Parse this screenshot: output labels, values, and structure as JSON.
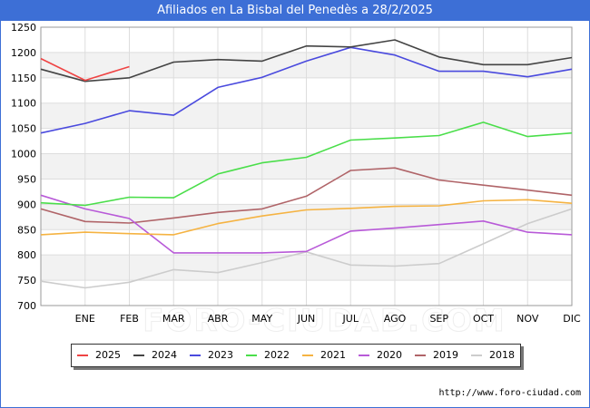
{
  "chart_data": {
    "type": "line",
    "title": "Afiliados en La Bisbal del Penedès a 28/2/2025",
    "xlabel": "",
    "ylabel": "",
    "categories": [
      "",
      "ENE",
      "FEB",
      "MAR",
      "ABR",
      "MAY",
      "JUN",
      "JUL",
      "AGO",
      "SEP",
      "OCT",
      "NOV",
      "DIC"
    ],
    "ylim": [
      700,
      1250
    ],
    "yticks": [
      700,
      750,
      800,
      850,
      900,
      950,
      1000,
      1050,
      1100,
      1150,
      1200,
      1250
    ],
    "grid": true,
    "legend_position": "bottom",
    "series": [
      {
        "name": "2025",
        "color": "#ef4444",
        "values": [
          1188,
          1145,
          1172,
          null,
          null,
          null,
          null,
          null,
          null,
          null,
          null,
          null,
          null
        ]
      },
      {
        "name": "2024",
        "color": "#444444",
        "values": [
          1167,
          1143,
          1150,
          1181,
          1186,
          1183,
          1213,
          1211,
          1225,
          1191,
          1176,
          1176,
          1190
        ]
      },
      {
        "name": "2023",
        "color": "#4a4ade",
        "values": [
          1041,
          1060,
          1085,
          1076,
          1131,
          1151,
          1183,
          1210,
          1195,
          1163,
          1163,
          1152,
          1167
        ]
      },
      {
        "name": "2022",
        "color": "#4ade4a",
        "values": [
          903,
          898,
          914,
          913,
          960,
          982,
          993,
          1027,
          1031,
          1036,
          1062,
          1034,
          1041
        ]
      },
      {
        "name": "2021",
        "color": "#f5b342",
        "values": [
          840,
          845,
          842,
          840,
          862,
          877,
          889,
          892,
          896,
          897,
          907,
          909,
          902
        ]
      },
      {
        "name": "2020",
        "color": "#b85ad8",
        "values": [
          918,
          891,
          872,
          804,
          804,
          804,
          807,
          847,
          853,
          860,
          867,
          845,
          840
        ]
      },
      {
        "name": "2019",
        "color": "#b06468",
        "values": [
          891,
          866,
          863,
          873,
          884,
          891,
          916,
          967,
          972,
          948,
          938,
          928,
          918
        ]
      },
      {
        "name": "2018",
        "color": "#cccccc",
        "values": [
          748,
          735,
          746,
          771,
          765,
          785,
          806,
          780,
          778,
          783,
          822,
          862,
          891
        ]
      }
    ]
  },
  "source": "http://www.foro-ciudad.com",
  "watermark": "FORO-CIUDAD.COM"
}
